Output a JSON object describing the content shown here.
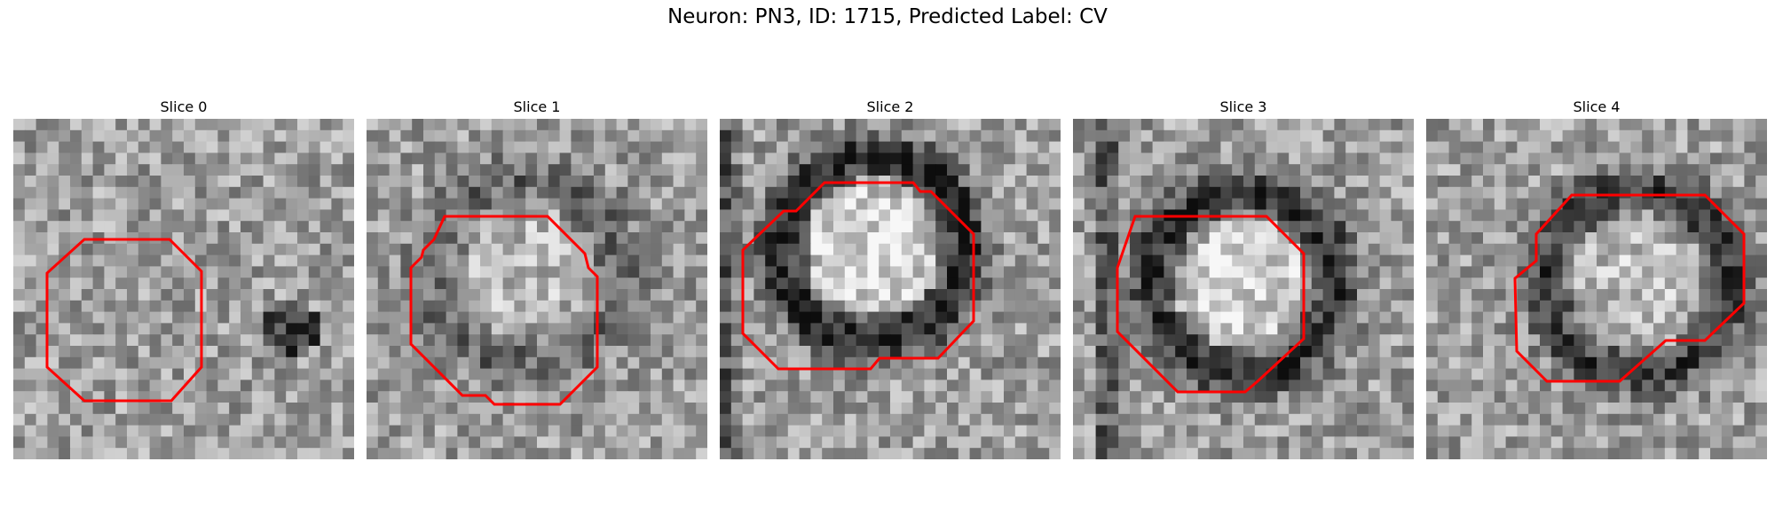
{
  "figure": {
    "title": "Neuron: PN3, ID: 1715, Predicted Label: CV"
  },
  "slices": [
    {
      "label": "Slice 0",
      "style": "noise"
    },
    {
      "label": "Slice 1",
      "style": "faint-ring"
    },
    {
      "label": "Slice 2",
      "style": "ring"
    },
    {
      "label": "Slice 3",
      "style": "ring"
    },
    {
      "label": "Slice 4",
      "style": "ring"
    }
  ],
  "colors": {
    "contour": "#ff0000",
    "background": "#ffffff"
  }
}
